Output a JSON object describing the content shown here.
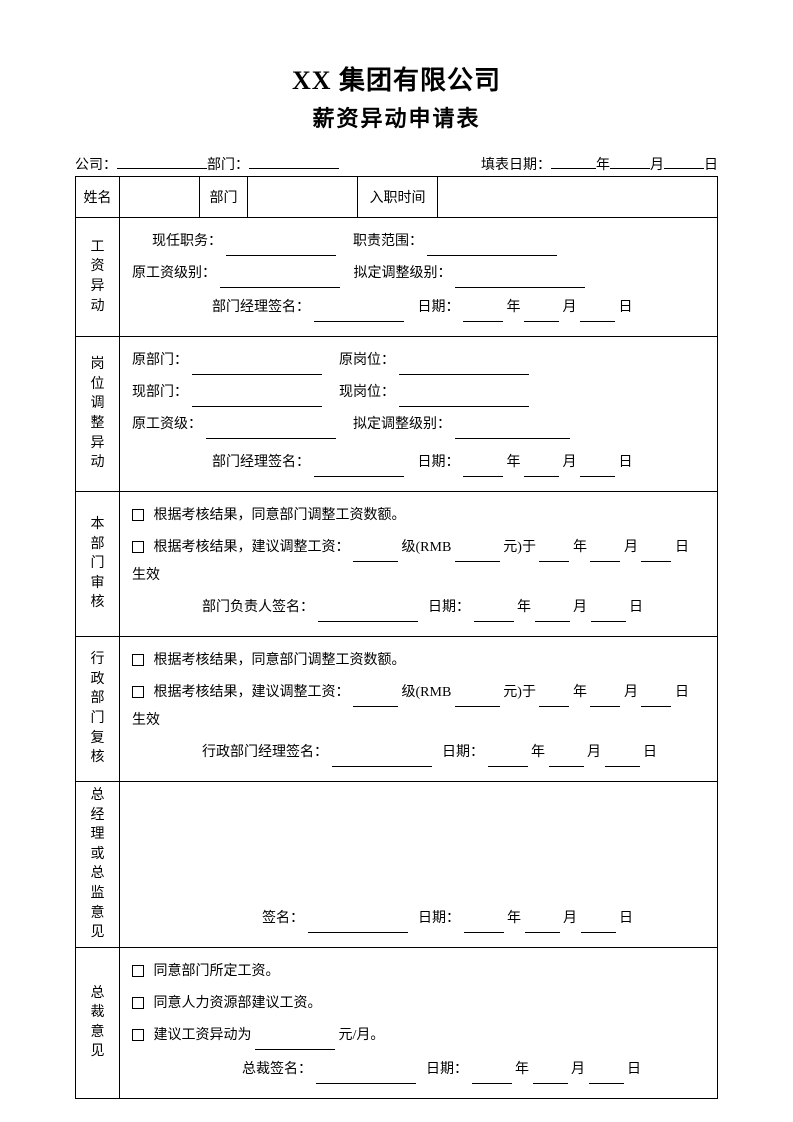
{
  "header": {
    "title_line1": "XX 集团有限公司",
    "title_line2": "薪资异动申请表",
    "company_label": "公司：",
    "dept_label": "部门：",
    "fill_date_label": "填表日期：",
    "year": "年",
    "month": "月",
    "day": "日"
  },
  "row1": {
    "name_label": "姓名",
    "dept_label": "部门",
    "hire_date_label": "入职时间"
  },
  "salary_change": {
    "side": "工资异动",
    "current_position": "现任职务：",
    "scope": "职责范围：",
    "orig_grade": "原工资级别：",
    "new_grade": "拟定调整级别：",
    "manager_sig": "部门经理签名：",
    "date": "日期：",
    "year": "年",
    "month": "月",
    "day": "日"
  },
  "position_change": {
    "side": "岗位调整异动",
    "orig_dept": "原部门：",
    "orig_post": "原岗位：",
    "new_dept": "现部门：",
    "new_post": "现岗位：",
    "orig_grade": "原工资级：",
    "new_grade": "拟定调整级别：",
    "manager_sig": "部门经理签名：",
    "date": "日期：",
    "year": "年",
    "month": "月",
    "day": "日"
  },
  "dept_review": {
    "side": "本部门审核",
    "opt1": "根据考核结果，同意部门调整工资数额。",
    "opt2_a": "根据考核结果，建议调整工资：",
    "opt2_b": "级(RMB",
    "opt2_c": "元)于",
    "opt2_d": "生效",
    "sig": "部门负责人签名：",
    "date": "日期：",
    "year": "年",
    "month": "月",
    "day": "日"
  },
  "admin_review": {
    "side": "行政部门复核",
    "opt1": "根据考核结果，同意部门调整工资数额。",
    "opt2_a": "根据考核结果，建议调整工资：",
    "opt2_b": "级(RMB",
    "opt2_c": "元)于",
    "opt2_d": "生效",
    "sig": "行政部门经理签名：",
    "date": "日期：",
    "year": "年",
    "month": "月",
    "day": "日"
  },
  "gm_opinion": {
    "side": "总经理或总监意见",
    "sig": "签名：",
    "date": "日期：",
    "year": "年",
    "month": "月",
    "day": "日"
  },
  "ceo_opinion": {
    "side": "总裁意见",
    "opt1": "同意部门所定工资。",
    "opt2": "同意人力资源部建议工资。",
    "opt3_a": "建议工资异动为",
    "opt3_b": "元/月。",
    "sig": "总裁签名：",
    "date": "日期：",
    "year": "年",
    "month": "月",
    "day": "日"
  }
}
